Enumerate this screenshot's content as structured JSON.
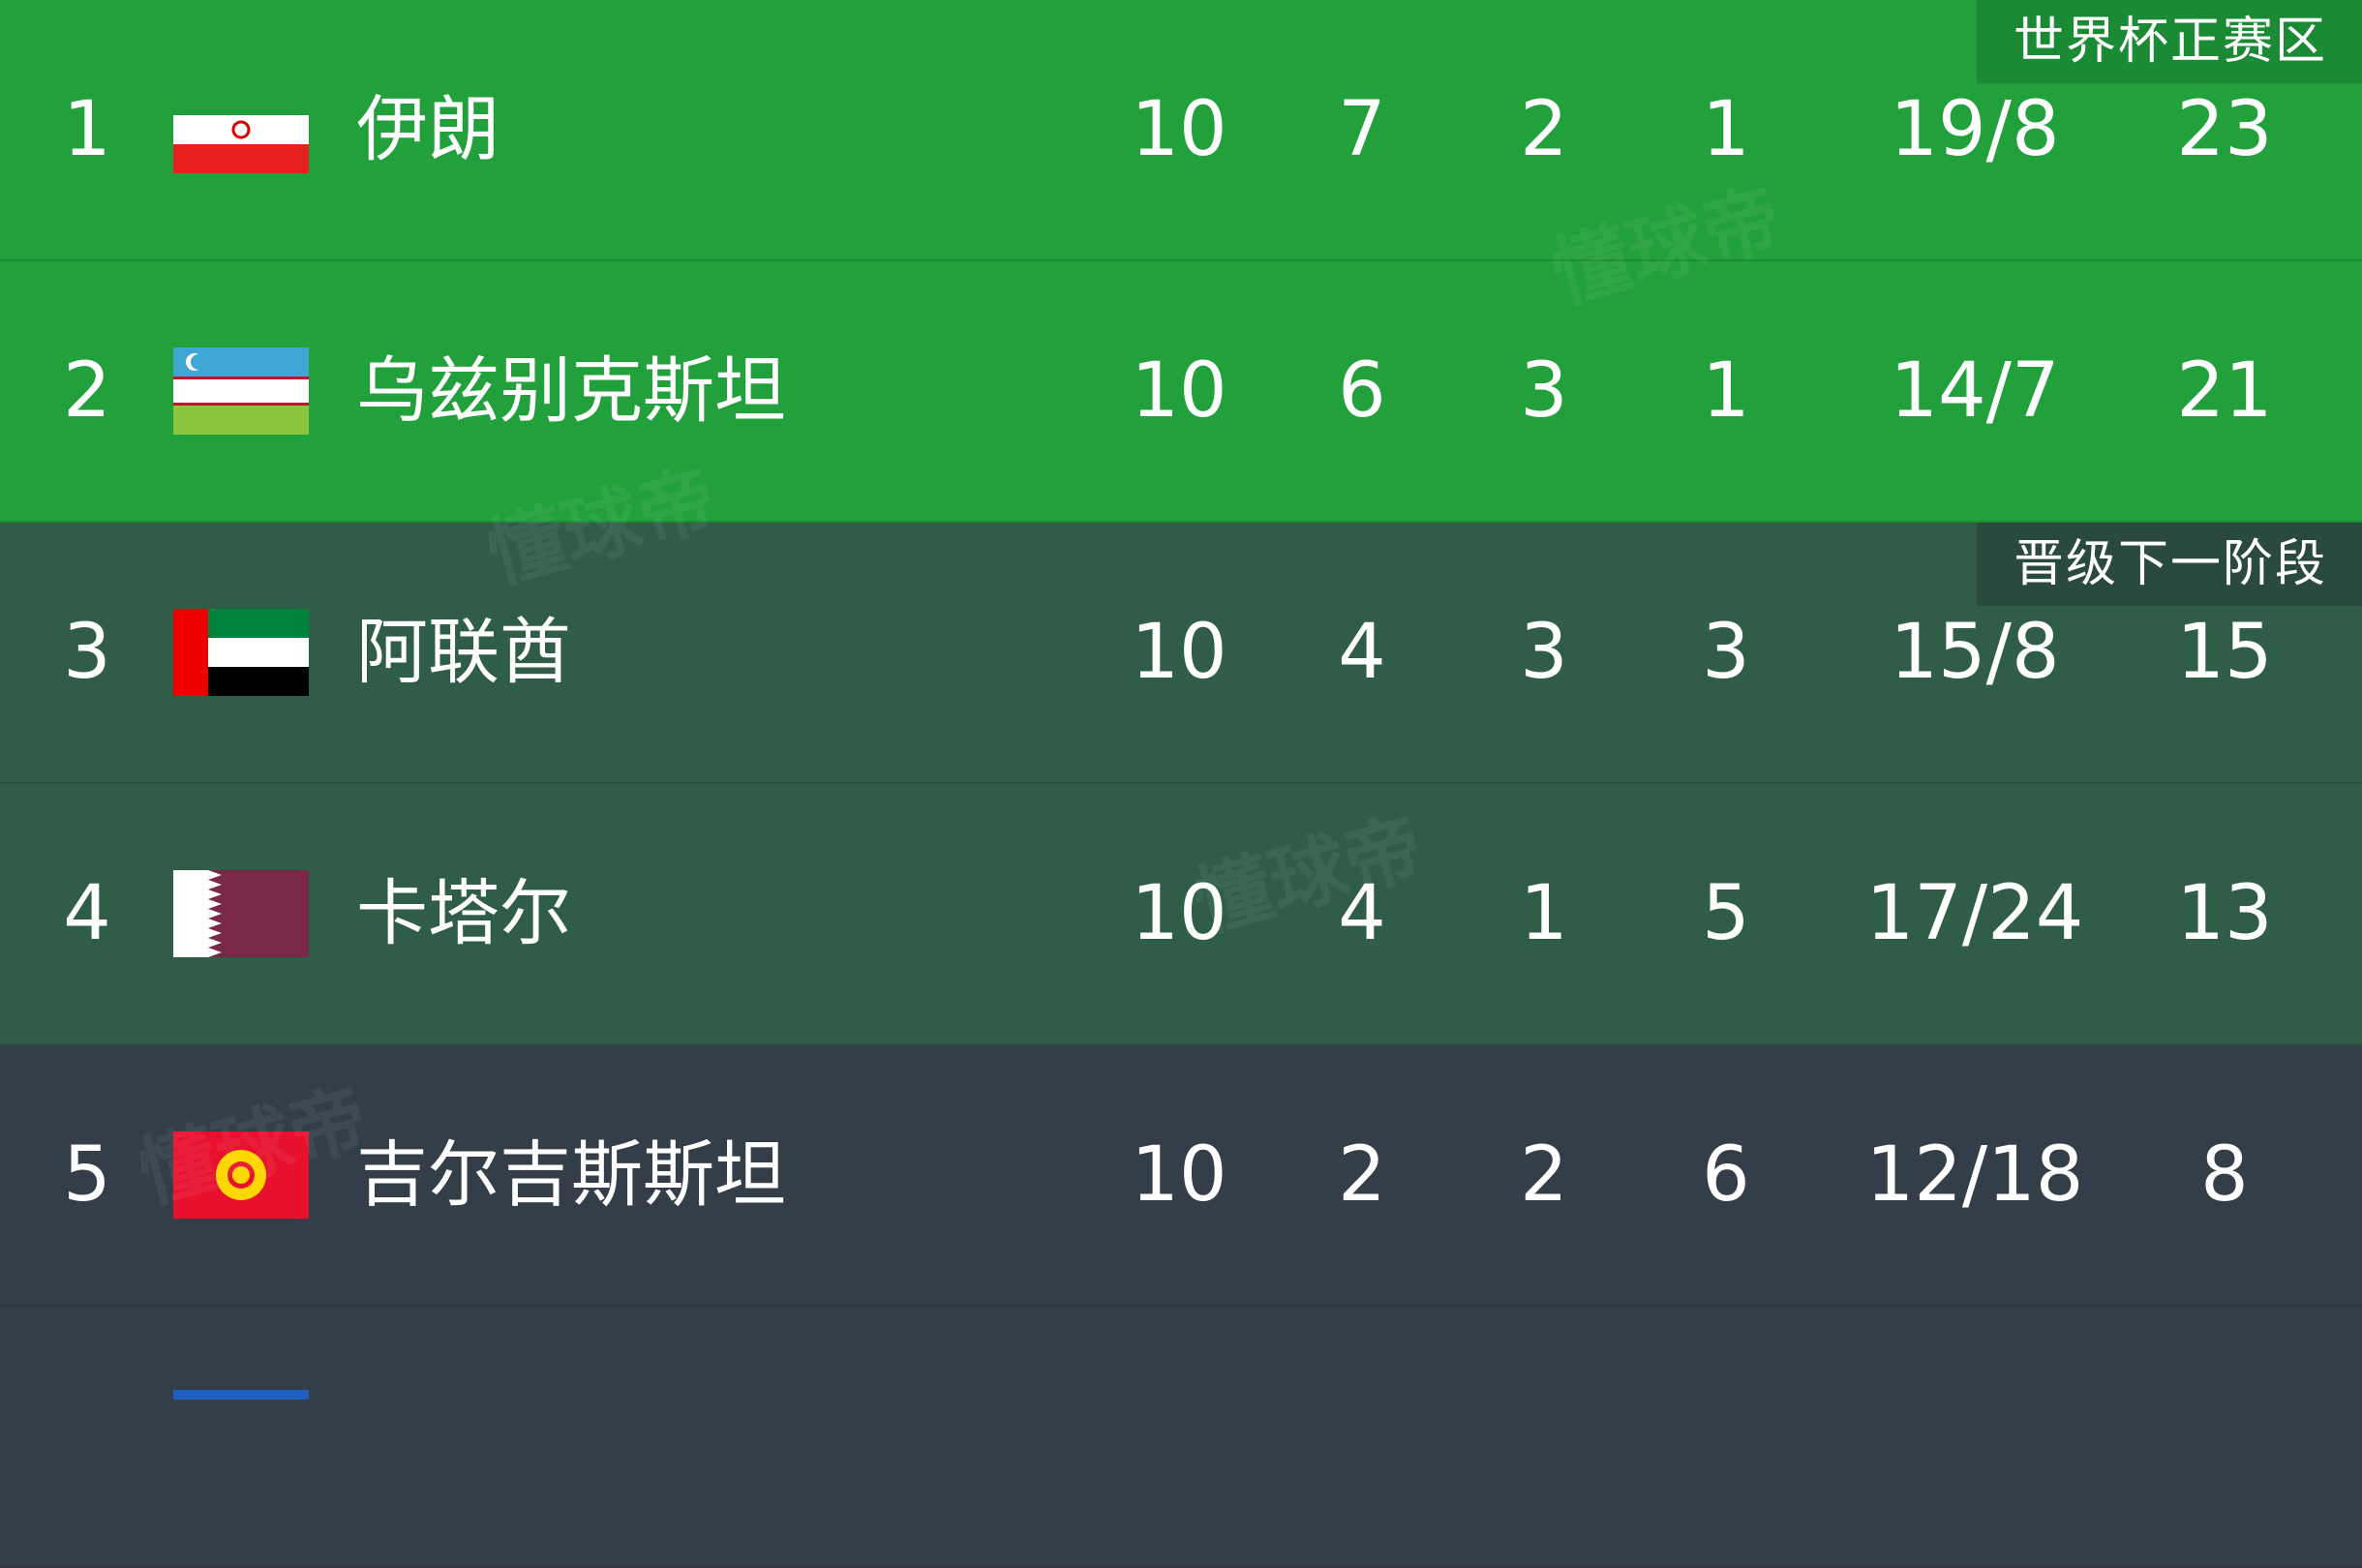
{
  "colors": {
    "qualify": "#22a03c",
    "playoff": "#2f5d47",
    "other": "#343e48",
    "badge_qualify": "#1b8a34",
    "badge_playoff": "#2a4a3e"
  },
  "badges": {
    "qualify": "世界杯正赛区",
    "playoff": "晋级下一阶段"
  },
  "watermark": "懂球帝",
  "rows": [
    {
      "rank": "1",
      "flag": "iran-flag",
      "team": "伊朗",
      "played": "10",
      "won": "7",
      "drawn": "2",
      "lost": "1",
      "goals": "19/8",
      "points": "23",
      "zone": "qualify"
    },
    {
      "rank": "2",
      "flag": "uzbekistan-flag",
      "team": "乌兹别克斯坦",
      "played": "10",
      "won": "6",
      "drawn": "3",
      "lost": "1",
      "goals": "14/7",
      "points": "21",
      "zone": "qualify"
    },
    {
      "rank": "3",
      "flag": "uae-flag",
      "team": "阿联酋",
      "played": "10",
      "won": "4",
      "drawn": "3",
      "lost": "3",
      "goals": "15/8",
      "points": "15",
      "zone": "playoff"
    },
    {
      "rank": "4",
      "flag": "qatar-flag",
      "team": "卡塔尔",
      "played": "10",
      "won": "4",
      "drawn": "1",
      "lost": "5",
      "goals": "17/24",
      "points": "13",
      "zone": "playoff"
    },
    {
      "rank": "5",
      "flag": "kyrgyzstan-flag",
      "team": "吉尔吉斯斯坦",
      "played": "10",
      "won": "2",
      "drawn": "2",
      "lost": "6",
      "goals": "12/18",
      "points": "8",
      "zone": "other"
    }
  ]
}
